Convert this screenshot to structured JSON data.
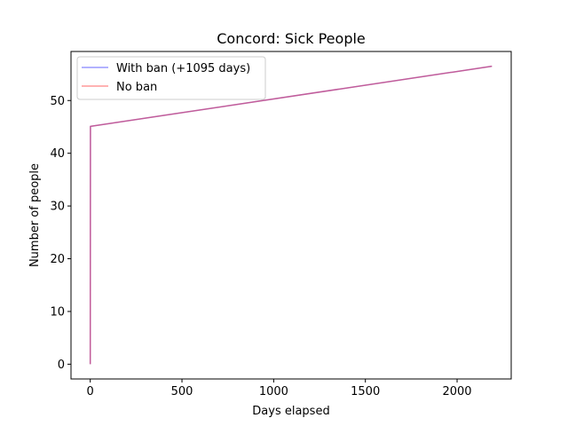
{
  "chart_data": {
    "type": "line",
    "title": "Concord: Sick People",
    "xlabel": "Days elapsed",
    "ylabel": "Number of people",
    "xlim": [
      -105,
      2295
    ],
    "ylim": [
      -2.8,
      59.3
    ],
    "xticks": [
      0,
      500,
      1000,
      1500,
      2000
    ],
    "yticks": [
      0,
      10,
      20,
      30,
      40,
      50
    ],
    "grid": false,
    "legend_position": "top-left",
    "series": [
      {
        "name": "With ban (+1095 days)",
        "color": "#0000ff",
        "opacity": 0.4,
        "points": [
          [
            0,
            0
          ],
          [
            1,
            45.1
          ],
          [
            2190,
            56.5
          ]
        ]
      },
      {
        "name": "No ban",
        "color": "#ff0000",
        "opacity": 0.4,
        "points": [
          [
            0,
            0
          ],
          [
            1,
            45.1
          ],
          [
            2190,
            56.5
          ]
        ]
      }
    ]
  }
}
